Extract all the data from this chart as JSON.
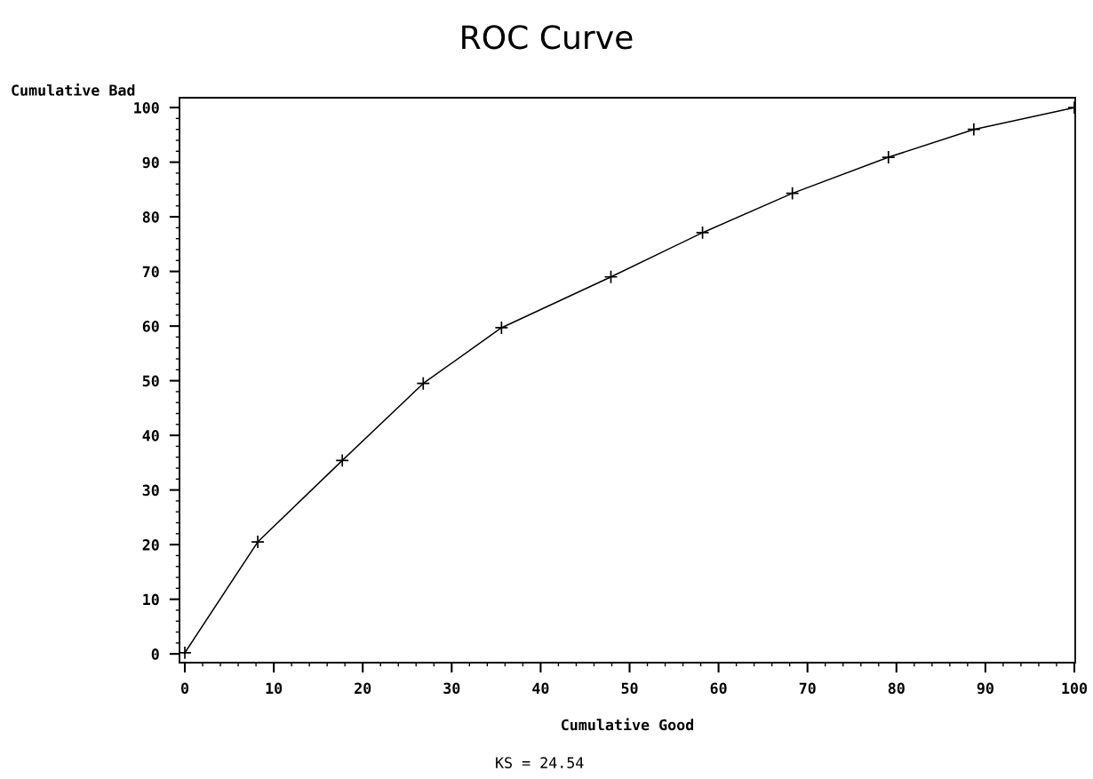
{
  "chart_data": {
    "type": "line",
    "title": "ROC Curve",
    "xlabel": "Cumulative Good",
    "ylabel": "Cumulative Bad",
    "series": [
      {
        "color": "#000000",
        "x": [
          0,
          8.2,
          17.7,
          26.8,
          35.6,
          47.9,
          58.2,
          68.3,
          79.1,
          88.7,
          100
        ],
        "values": [
          0.2,
          20.5,
          35.4,
          49.5,
          59.7,
          69.0,
          77.1,
          84.3,
          90.9,
          96.0,
          100
        ]
      }
    ],
    "xlim": [
      -0.6,
      100.1
    ],
    "ylim": [
      -1.6,
      101.8
    ],
    "xticks": [
      0,
      10,
      20,
      30,
      40,
      50,
      60,
      70,
      80,
      90,
      100
    ],
    "yticks": [
      0,
      10,
      20,
      30,
      40,
      50,
      60,
      70,
      80,
      90,
      100
    ],
    "marker": "cross",
    "line_style": "solid",
    "grid": false,
    "legend": false,
    "annotations": [
      "KS = 24.54"
    ]
  }
}
